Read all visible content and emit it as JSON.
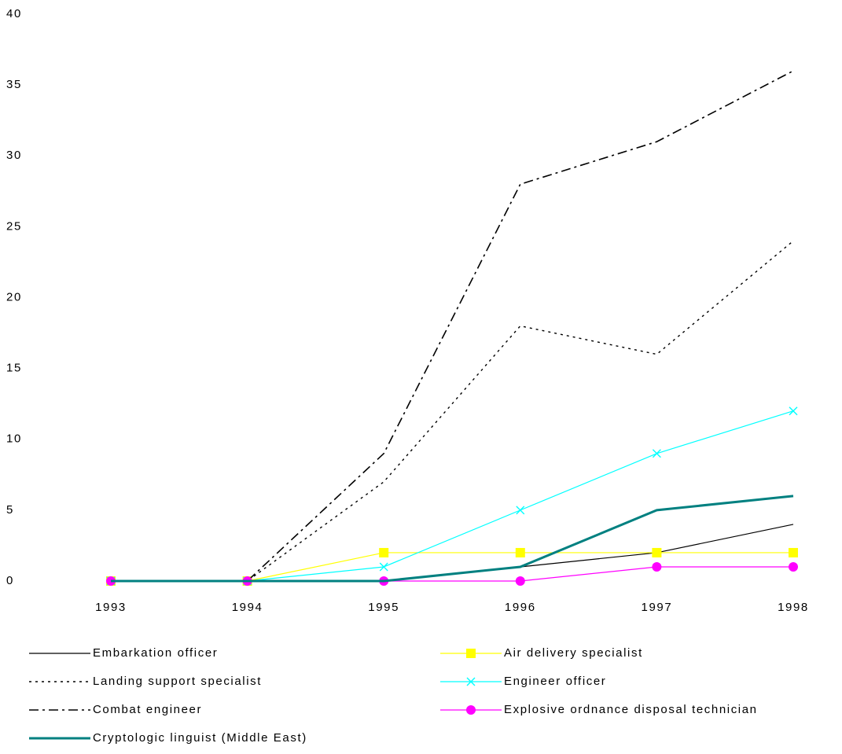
{
  "chart_data": {
    "type": "line",
    "categories": [
      "1993",
      "1994",
      "1995",
      "1996",
      "1997",
      "1998"
    ],
    "ylim": [
      0,
      40
    ],
    "yticks": [
      0,
      5,
      10,
      15,
      20,
      25,
      30,
      35,
      40
    ],
    "grid": false,
    "legend": "bottom",
    "series": [
      {
        "name": "Embarkation officer",
        "color": "#000000",
        "linestyle": "solid",
        "marker": "none",
        "values": [
          0,
          0,
          0,
          1,
          2,
          4
        ]
      },
      {
        "name": "Air delivery specialist",
        "color": "#ffff00",
        "linestyle": "solid",
        "marker": "square",
        "values": [
          0,
          0,
          2,
          2,
          2,
          2
        ]
      },
      {
        "name": "Landing support specialist",
        "color": "#000000",
        "linestyle": "dotted",
        "marker": "none",
        "values": [
          0,
          0,
          7,
          18,
          16,
          24
        ]
      },
      {
        "name": "Engineer officer",
        "color": "#00ffff",
        "linestyle": "solid",
        "marker": "x",
        "values": [
          0,
          0,
          1,
          5,
          9,
          12
        ]
      },
      {
        "name": "Combat engineer",
        "color": "#000000",
        "linestyle": "dashdot",
        "marker": "none",
        "values": [
          0,
          0,
          9,
          28,
          31,
          36
        ]
      },
      {
        "name": "Explosive ordnance disposal technician",
        "color": "#ff00ff",
        "linestyle": "solid",
        "marker": "circle",
        "values": [
          0,
          0,
          0,
          0,
          1,
          1
        ]
      },
      {
        "name": "Cryptologic linguist (Middle East)",
        "color": "#008080",
        "linestyle": "thick",
        "marker": "none",
        "values": [
          0,
          0,
          0,
          1,
          5,
          6
        ]
      }
    ]
  }
}
